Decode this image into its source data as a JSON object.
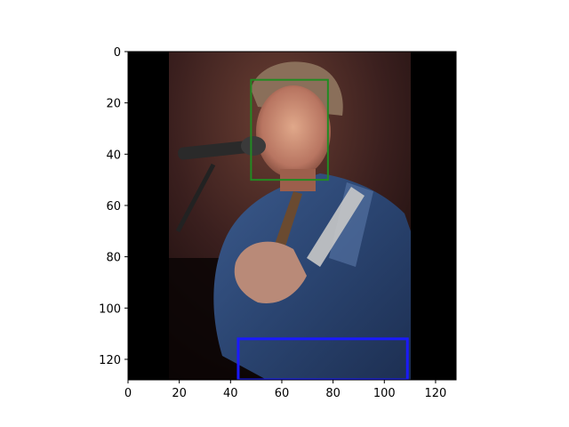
{
  "chart_data": {
    "type": "image",
    "xlim": [
      0,
      128
    ],
    "ylim": [
      128,
      0
    ],
    "xticks": [
      0,
      20,
      40,
      60,
      80,
      100,
      120
    ],
    "yticks": [
      0,
      20,
      40,
      60,
      80,
      100,
      120
    ],
    "xtick_labels": [
      "0",
      "20",
      "40",
      "60",
      "80",
      "100",
      "120"
    ],
    "ytick_labels": [
      "0",
      "20",
      "40",
      "60",
      "80",
      "100",
      "120"
    ],
    "image": {
      "subject": "man singing into a microphone while playing guitar",
      "content_x_range": [
        16,
        110
      ]
    },
    "boxes": [
      {
        "label": "face",
        "color": "#228b22",
        "x0": 48,
        "y0": 11,
        "x1": 78,
        "y1": 50
      },
      {
        "label": "bottom",
        "color": "#1a1aff",
        "x0": 43,
        "y0": 112,
        "x1": 109,
        "y1": 128
      }
    ]
  }
}
